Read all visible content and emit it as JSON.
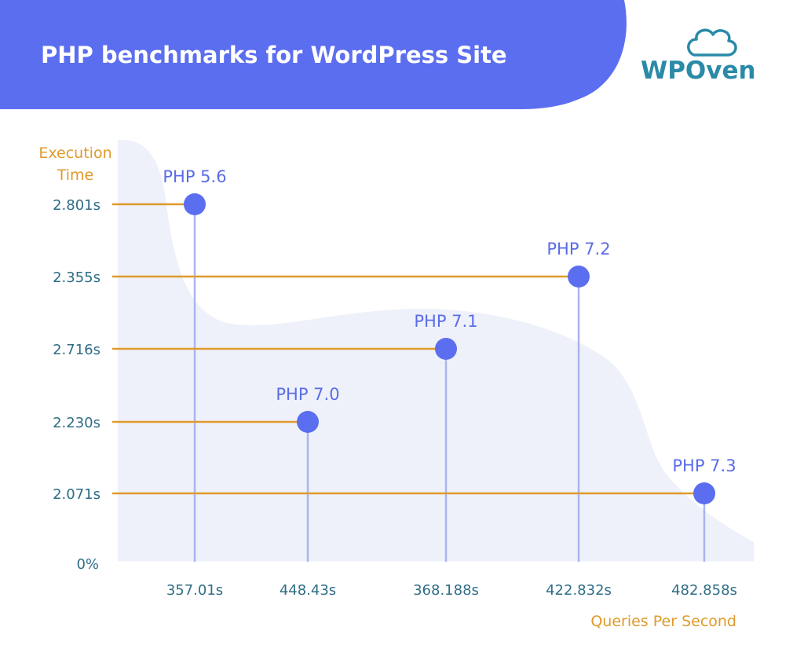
{
  "header": {
    "title": "PHP benchmarks for WordPress Site",
    "brand": "WPOven",
    "banner_color": "#5b6ef0",
    "brand_color": "#2a8aa8"
  },
  "chart_data": {
    "type": "scatter",
    "ylabel_lines": [
      "Execution",
      "Time"
    ],
    "xlabel": "Queries Per Second",
    "y_zero_label": "0%",
    "grid": false,
    "colors": {
      "point": "#5b6ef0",
      "horizontal_line": "#e09a2c",
      "vertical_line": "#aab4f0",
      "background_shape": "#eef1f9"
    },
    "points": [
      {
        "label": "PHP 5.6",
        "x_label": "357.01s",
        "y_label": "2.801s"
      },
      {
        "label": "PHP 7.0",
        "x_label": "448.43s",
        "y_label": "2.230s"
      },
      {
        "label": "PHP 7.1",
        "x_label": "368.188s",
        "y_label": "2.716s"
      },
      {
        "label": "PHP 7.2",
        "x_label": "422.832s",
        "y_label": "2.355s"
      },
      {
        "label": "PHP 7.3",
        "x_label": "482.858s",
        "y_label": "2.071s"
      }
    ],
    "y_tick_order": [
      "2.801s",
      "2.355s",
      "2.716s",
      "2.230s",
      "2.071s"
    ]
  }
}
